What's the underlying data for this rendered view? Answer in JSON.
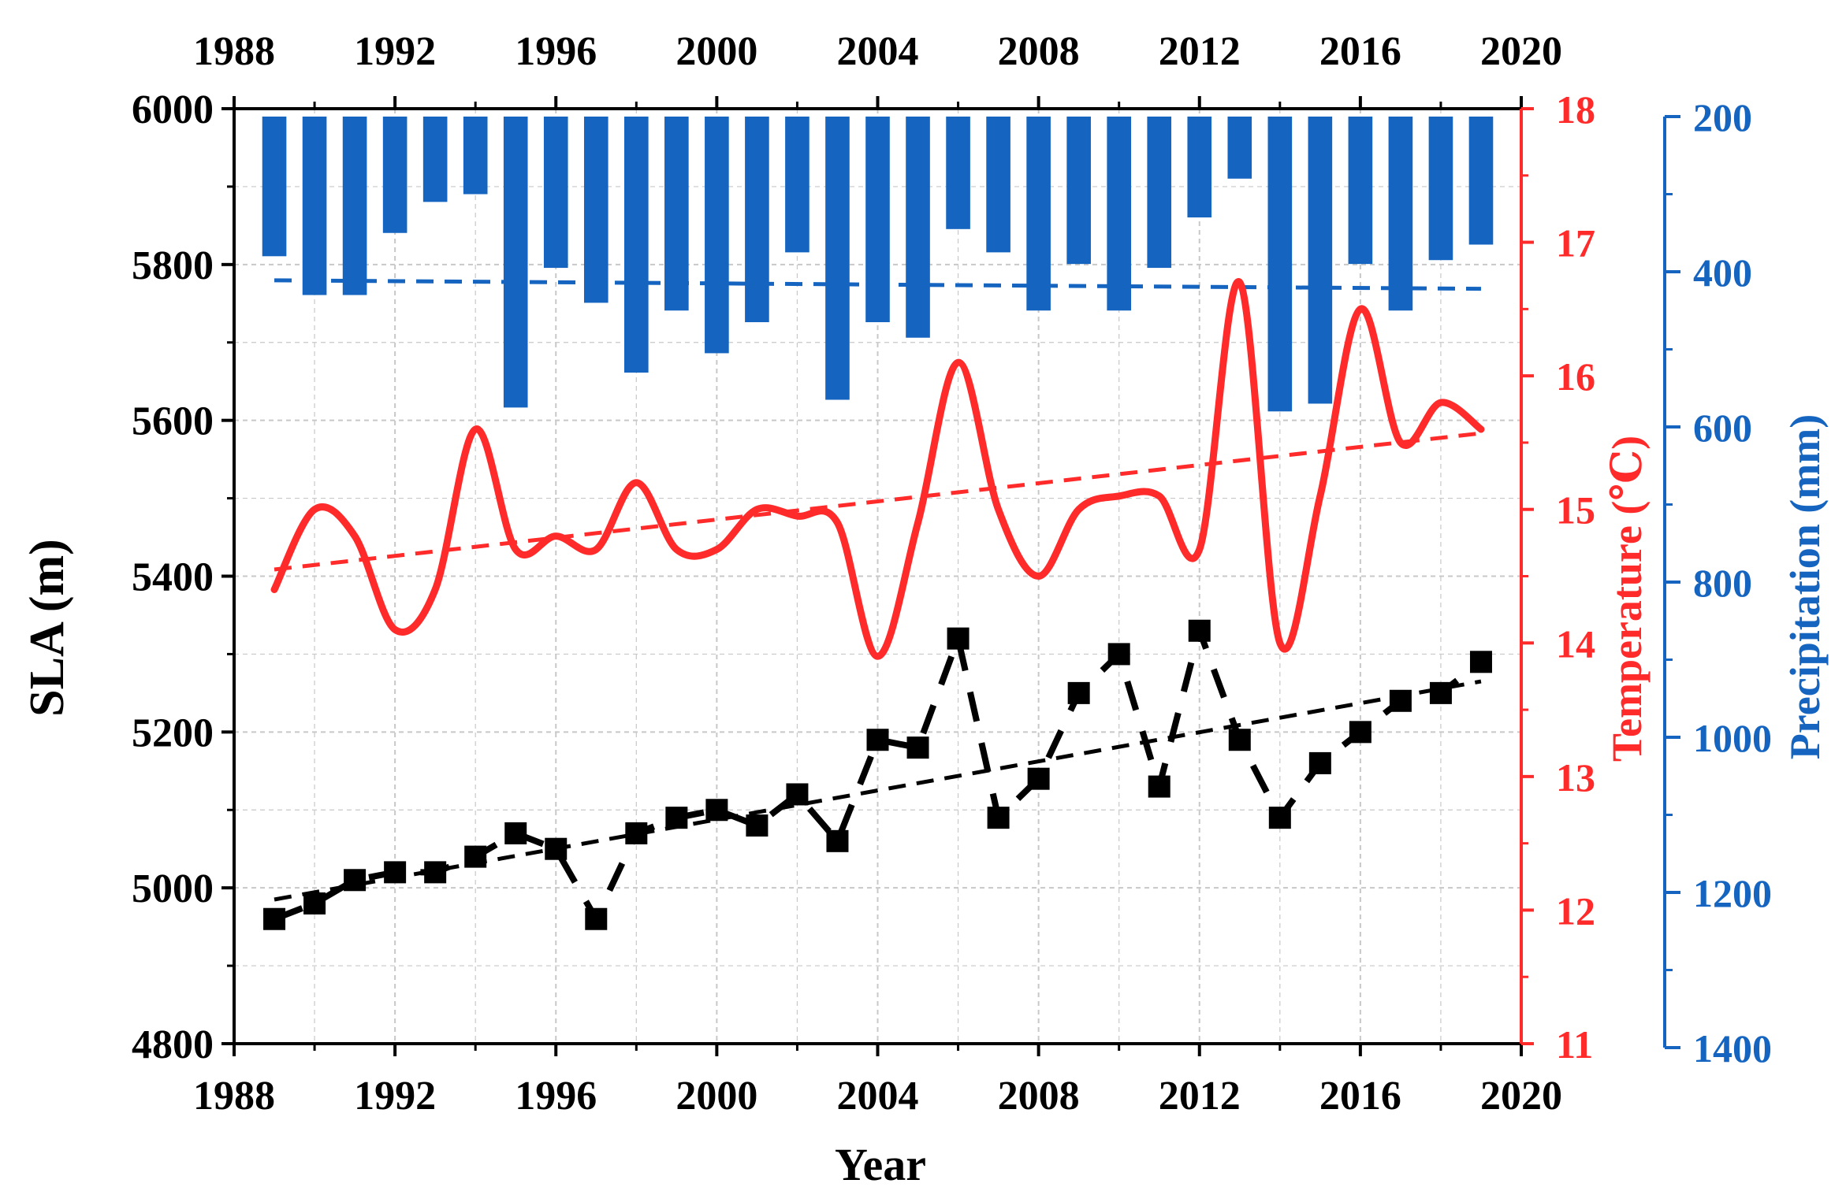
{
  "chart_data": {
    "type": "bar+line+scatter",
    "x_axis": {
      "label": "Year",
      "range": [
        1988,
        2020
      ],
      "ticks": [
        1988,
        1992,
        1996,
        2000,
        2004,
        2008,
        2012,
        2016,
        2020
      ],
      "tick_labels": [
        "1988",
        "1992",
        "1996",
        "2000",
        "2004",
        "2008",
        "2012",
        "2016",
        "2020"
      ],
      "mirrored_on_top": true
    },
    "y_left": {
      "label": "SLA (m)",
      "range": [
        4800,
        6000
      ],
      "ticks": [
        4800,
        5000,
        5200,
        5400,
        5600,
        5800,
        6000
      ],
      "tick_labels": [
        "4800",
        "5000",
        "5200",
        "5400",
        "5600",
        "5800",
        "6000"
      ]
    },
    "y_right_temperature": {
      "label": "Temperature (℃)",
      "range": [
        11,
        18
      ],
      "ticks": [
        11,
        12,
        13,
        14,
        15,
        16,
        17,
        18
      ],
      "tick_labels": [
        "11",
        "12",
        "13",
        "14",
        "15",
        "16",
        "17",
        "18"
      ]
    },
    "y_right_precipitation": {
      "label": "Precipitation (mm)",
      "range": [
        200,
        1400
      ],
      "inverted": true,
      "ticks": [
        200,
        400,
        600,
        800,
        1000,
        1200,
        1400
      ],
      "tick_labels": [
        "200",
        "400",
        "600",
        "800",
        "1000",
        "1200",
        "1400"
      ]
    },
    "grid": true,
    "colors": {
      "sla": "#000000",
      "temperature": "#ff2a2a",
      "precipitation": "#1565c0",
      "grid": "#c8c8c8"
    },
    "series": [
      {
        "name": "SLA",
        "axis": "left",
        "style": "dashed-line-with-square-markers",
        "x": [
          1989,
          1990,
          1991,
          1992,
          1993,
          1994,
          1995,
          1996,
          1997,
          1998,
          1999,
          2000,
          2001,
          2002,
          2003,
          2004,
          2005,
          2006,
          2007,
          2008,
          2009,
          2010,
          2011,
          2012,
          2013,
          2014,
          2015,
          2016,
          2017,
          2018,
          2019
        ],
        "values": [
          4960,
          4980,
          5010,
          5020,
          5020,
          5040,
          5070,
          5050,
          4960,
          5070,
          5090,
          5100,
          5080,
          5120,
          5060,
          5190,
          5180,
          5320,
          5090,
          5140,
          5250,
          5300,
          5130,
          5330,
          5190,
          5090,
          5160,
          5200,
          5240,
          5250,
          5290
        ]
      },
      {
        "name": "SLA trend",
        "axis": "left",
        "style": "dashed-line",
        "x": [
          1989,
          2019
        ],
        "values": [
          4985,
          5265
        ]
      },
      {
        "name": "Temperature",
        "axis": "right_temperature",
        "style": "smooth-line",
        "x": [
          1989,
          1990,
          1991,
          1992,
          1993,
          1994,
          1995,
          1996,
          1997,
          1998,
          1999,
          2000,
          2001,
          2002,
          2003,
          2004,
          2005,
          2006,
          2007,
          2008,
          2009,
          2010,
          2011,
          2012,
          2013,
          2014,
          2015,
          2016,
          2017,
          2018,
          2019
        ],
        "values": [
          14.4,
          15.0,
          14.8,
          14.1,
          14.4,
          15.6,
          14.7,
          14.8,
          14.7,
          15.2,
          14.7,
          14.7,
          15.0,
          14.95,
          14.9,
          13.9,
          14.9,
          16.1,
          15.0,
          14.5,
          15.0,
          15.1,
          15.1,
          14.7,
          16.7,
          14.0,
          15.1,
          16.5,
          15.5,
          15.8,
          15.6
        ]
      },
      {
        "name": "Temperature trend",
        "axis": "right_temperature",
        "style": "dashed-line",
        "x": [
          1989,
          2019
        ],
        "values": [
          14.55,
          15.57
        ]
      },
      {
        "name": "Precipitation",
        "axis": "right_precipitation",
        "style": "bar-hanging-from-top",
        "x": [
          1989,
          1990,
          1991,
          1992,
          1993,
          1994,
          1995,
          1996,
          1997,
          1998,
          1999,
          2000,
          2001,
          2002,
          2003,
          2004,
          2005,
          2006,
          2007,
          2008,
          2009,
          2010,
          2011,
          2012,
          2013,
          2014,
          2015,
          2016,
          2017,
          2018,
          2019
        ],
        "values": [
          380,
          430,
          430,
          350,
          310,
          300,
          575,
          395,
          440,
          530,
          450,
          505,
          465,
          375,
          565,
          465,
          485,
          345,
          375,
          450,
          390,
          450,
          395,
          330,
          280,
          580,
          570,
          390,
          450,
          385,
          365
        ]
      },
      {
        "name": "Precipitation trend",
        "axis": "right_precipitation",
        "style": "dashed-line",
        "x": [
          1989,
          2019
        ],
        "values": [
          411,
          422
        ]
      }
    ]
  }
}
